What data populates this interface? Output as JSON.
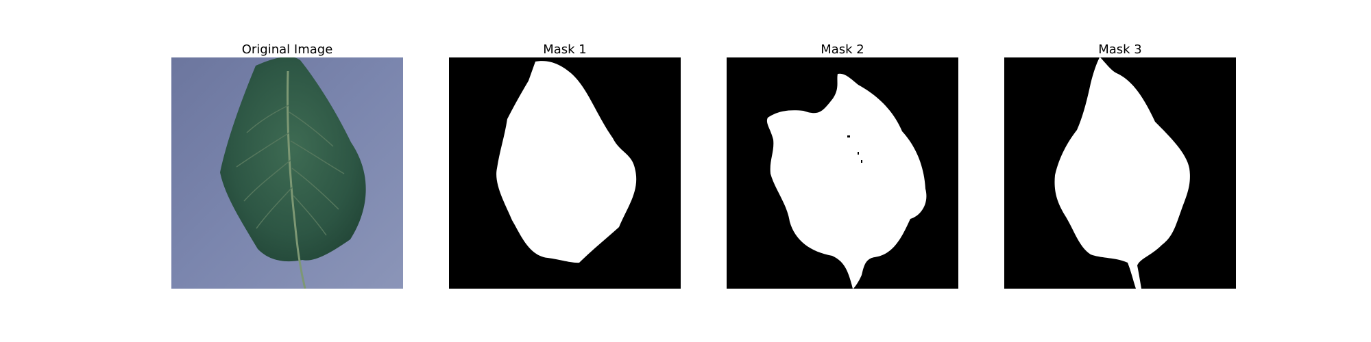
{
  "panels": [
    {
      "title": "Original Image"
    },
    {
      "title": "Mask 1"
    },
    {
      "title": "Mask 2"
    },
    {
      "title": "Mask 3"
    }
  ],
  "colors": {
    "background": "#7a84ad",
    "leaf": "#2f5a46",
    "leaf_vein": "#6f8d63",
    "mask_background": "#000000",
    "mask_foreground": "#ffffff"
  }
}
